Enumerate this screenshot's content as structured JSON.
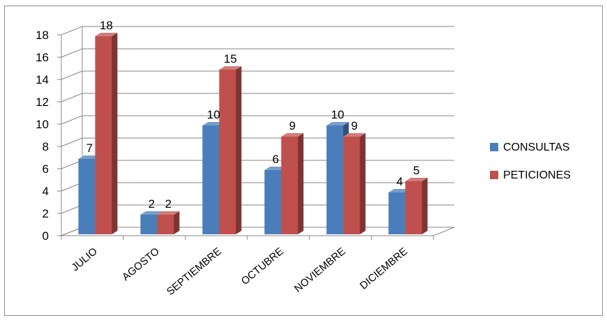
{
  "chart_data": {
    "type": "bar",
    "categories": [
      "JULIO",
      "AGOSTO",
      "SEPTIEMBRE",
      "OCTUBRE",
      "NOVIEMBRE",
      "DICIEMBRE"
    ],
    "series": [
      {
        "name": "CONSULTAS",
        "values": [
          7,
          2,
          10,
          6,
          10,
          4
        ],
        "color": "#4a7ebb"
      },
      {
        "name": "PETICIONES",
        "values": [
          18,
          2,
          15,
          9,
          9,
          5
        ],
        "color": "#c0504d"
      }
    ],
    "ylim": [
      0,
      18
    ],
    "yticks": [
      0,
      2,
      4,
      6,
      8,
      10,
      12,
      14,
      16,
      18
    ],
    "grid": true,
    "legend_position": "right",
    "style": "3d-clustered-column",
    "title": "",
    "xlabel": "",
    "ylabel": ""
  }
}
